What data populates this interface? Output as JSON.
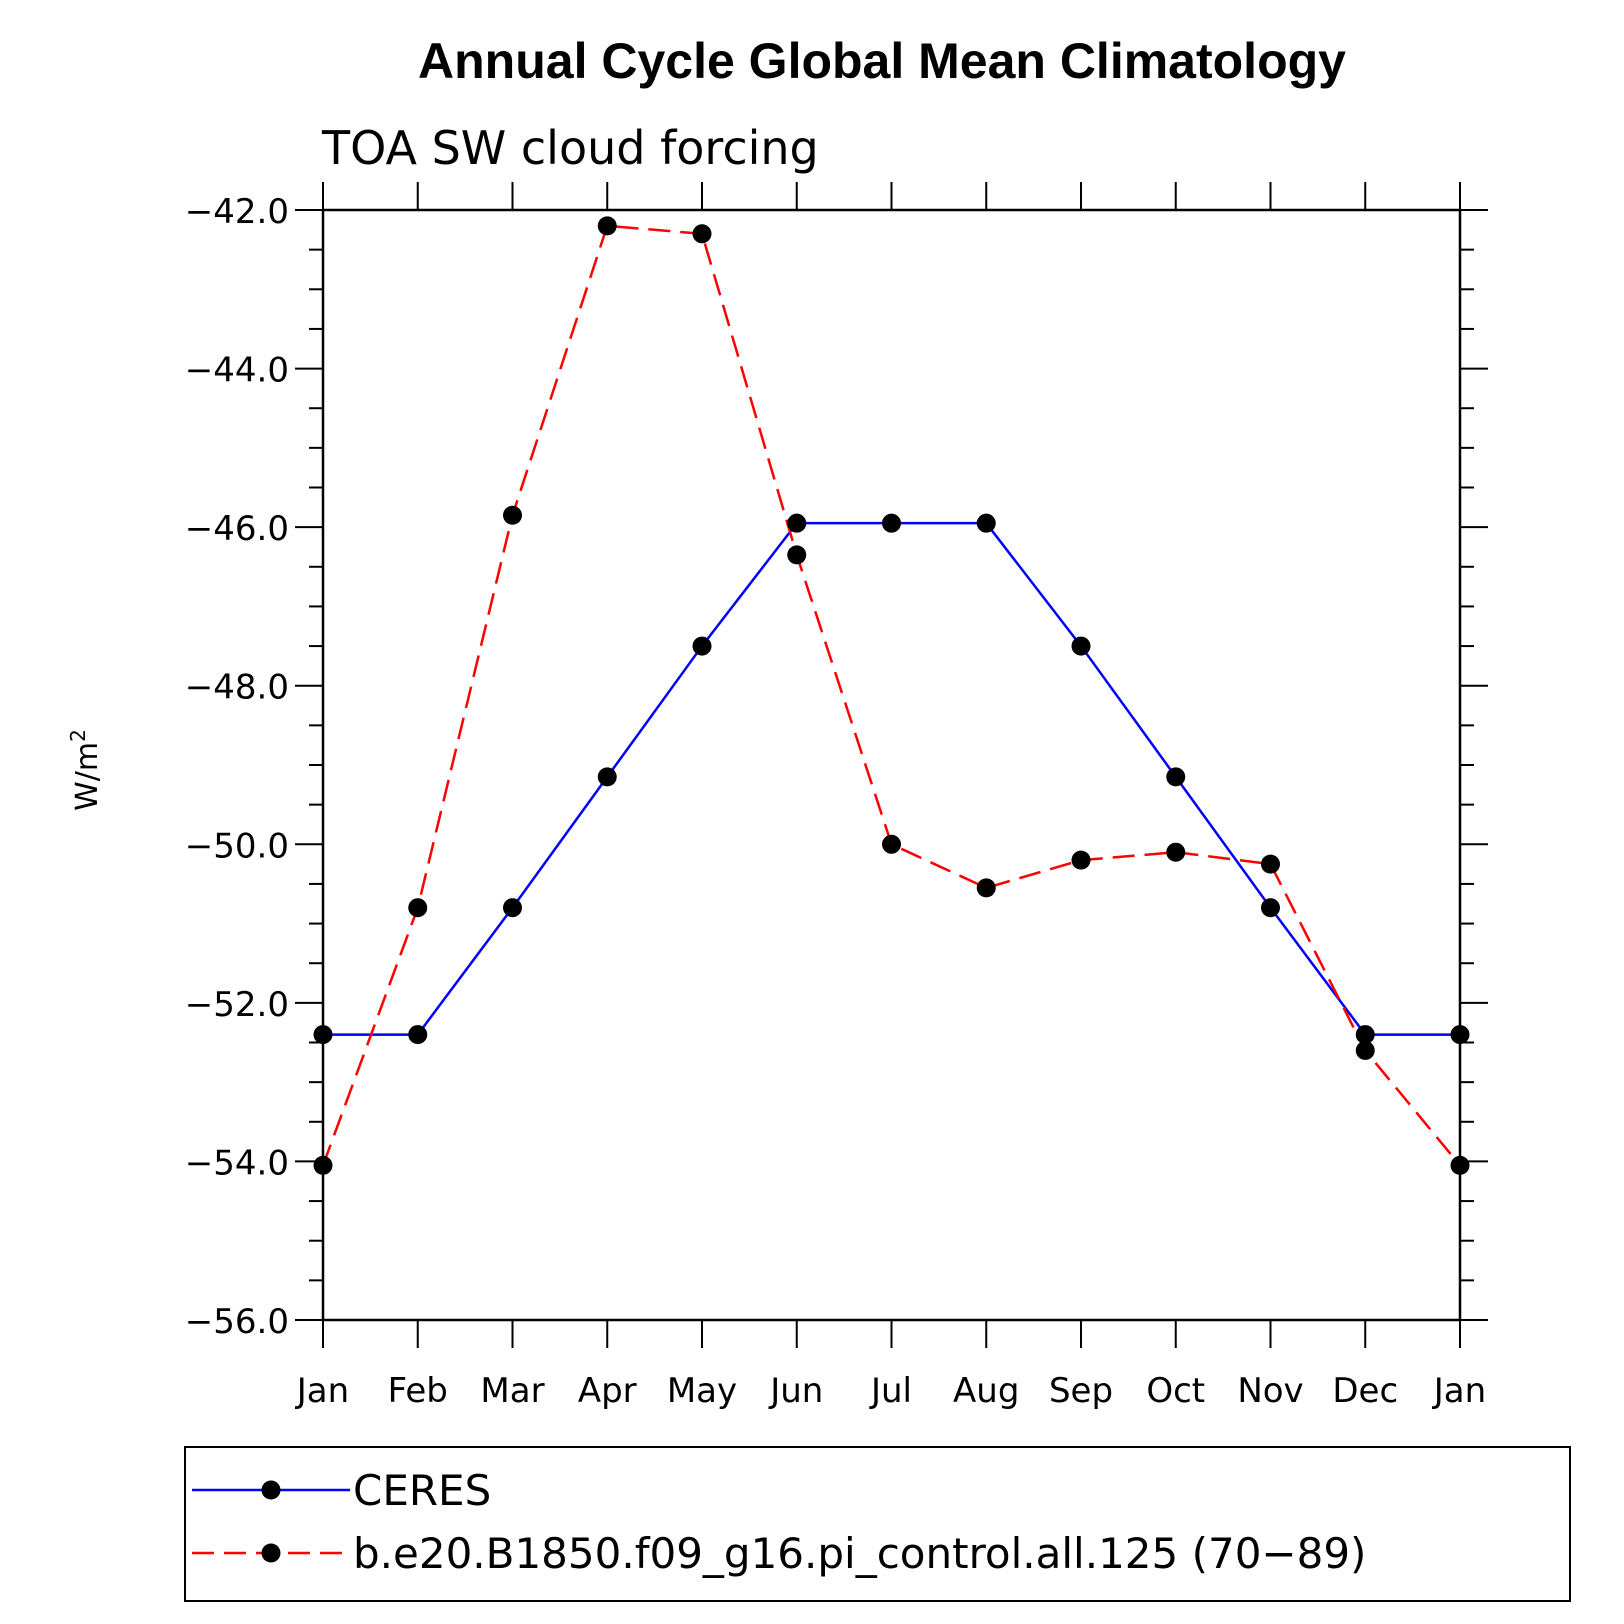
{
  "chart_data": {
    "type": "line",
    "title": "Annual Cycle Global Mean Climatology",
    "subtitle": "TOA SW cloud forcing",
    "ylabel": "W/m",
    "ylabel_superscript": "2",
    "ylim": [
      -56.0,
      -42.0
    ],
    "yticks": [
      -42.0,
      -44.0,
      -46.0,
      -48.0,
      -50.0,
      -52.0,
      -54.0,
      -56.0
    ],
    "ytick_labels": [
      "−42.0",
      "−44.0",
      "−46.0",
      "−48.0",
      "−50.0",
      "−52.0",
      "−54.0",
      "−56.0"
    ],
    "categories": [
      "Jan",
      "Feb",
      "Mar",
      "Apr",
      "May",
      "Jun",
      "Jul",
      "Aug",
      "Sep",
      "Oct",
      "Nov",
      "Dec",
      "Jan"
    ],
    "legend_position": "bottom",
    "series": [
      {
        "name": "CERES",
        "color": "#0000ff",
        "dash": "solid",
        "values": [
          -52.4,
          -52.4,
          -50.8,
          -49.15,
          -47.5,
          -45.95,
          -45.95,
          -45.95,
          -47.5,
          -49.15,
          -50.8,
          -52.4,
          -52.4
        ]
      },
      {
        "name": "b.e20.B1850.f09_g16.pi_control.all.125 (70−89)",
        "color": "#ff0000",
        "dash": "dashed",
        "values": [
          -54.05,
          -50.8,
          -45.85,
          -42.2,
          -42.3,
          -46.35,
          -50.0,
          -50.55,
          -50.2,
          -50.1,
          -50.25,
          -52.6,
          -54.05
        ]
      }
    ]
  }
}
